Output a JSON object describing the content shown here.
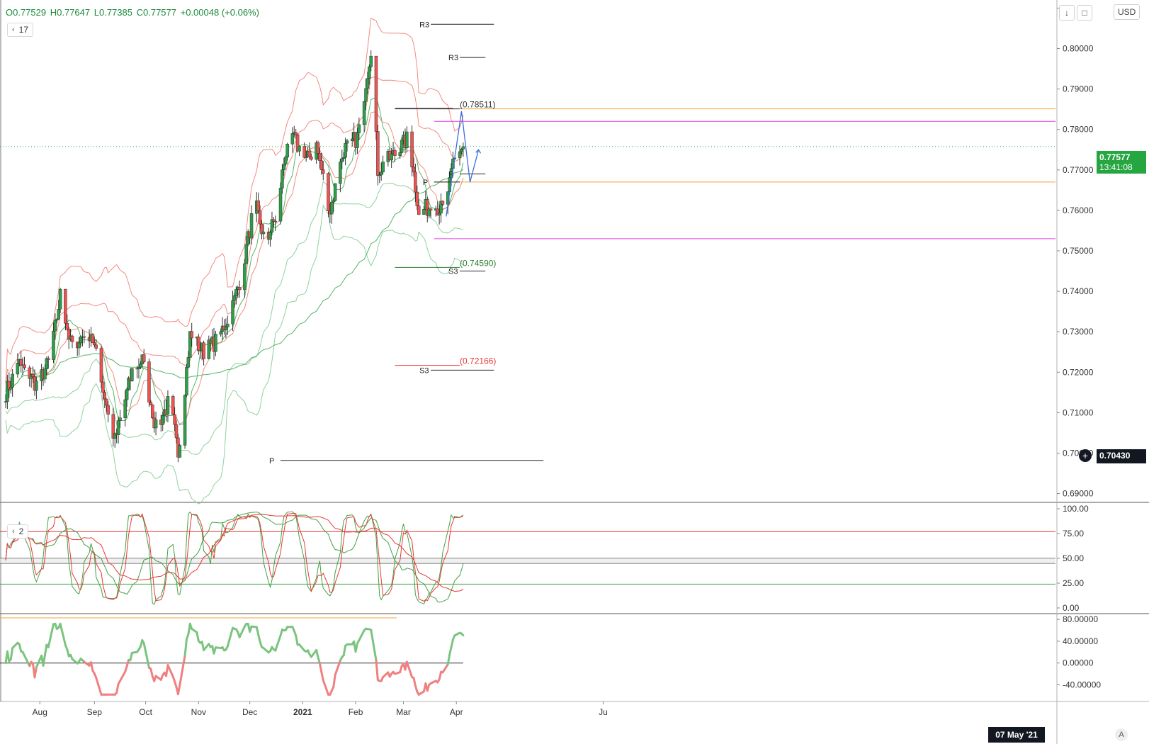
{
  "header": {
    "open": "O0.77529",
    "high": "H0.77647",
    "low": "L0.77385",
    "close": "C0.77577",
    "change": "+0.00048 (+0.06%)"
  },
  "legends": {
    "main_length": "17",
    "stoch_length": "2"
  },
  "toolbar": {
    "down_icon": "arrow-down-icon",
    "fullscreen_icon": "fullscreen-icon",
    "currency": "USD"
  },
  "price_tag": {
    "value": "0.77577",
    "countdown": "13:41:08",
    "color": "#26a641"
  },
  "crosshair_tag": {
    "value": "0.70430"
  },
  "time_tag": {
    "label": "07 May '21"
  },
  "auto_label": "A",
  "chart_data": [
    {
      "type": "candlestick",
      "symbol_currency": "USD",
      "y_axis": {
        "range": [
          0.688,
          0.812
        ],
        "ticks": [
          "0.69000",
          "0.70000",
          "0.71000",
          "0.72000",
          "0.73000",
          "0.74000",
          "0.75000",
          "0.76000",
          "0.77000",
          "0.78000",
          "0.79000",
          "0.80000",
          "0.8"
        ]
      },
      "x_axis": {
        "labels": [
          "Aug",
          "Sep",
          "Oct",
          "Nov",
          "Dec",
          "2021",
          "Feb",
          "Mar",
          "Apr",
          "Ju"
        ]
      },
      "anchors": [
        {
          "d": 0,
          "c": 0.715
        },
        {
          "d": 8,
          "c": 0.722
        },
        {
          "d": 18,
          "c": 0.717
        },
        {
          "d": 26,
          "c": 0.723
        },
        {
          "d": 32,
          "c": 0.739
        },
        {
          "d": 38,
          "c": 0.727
        },
        {
          "d": 50,
          "c": 0.73
        },
        {
          "d": 58,
          "c": 0.714
        },
        {
          "d": 64,
          "c": 0.703
        },
        {
          "d": 74,
          "c": 0.72
        },
        {
          "d": 80,
          "c": 0.723
        },
        {
          "d": 88,
          "c": 0.706
        },
        {
          "d": 96,
          "c": 0.713
        },
        {
          "d": 101,
          "c": 0.7
        },
        {
          "d": 108,
          "c": 0.729
        },
        {
          "d": 116,
          "c": 0.725
        },
        {
          "d": 124,
          "c": 0.728
        },
        {
          "d": 132,
          "c": 0.735
        },
        {
          "d": 138,
          "c": 0.744
        },
        {
          "d": 146,
          "c": 0.762
        },
        {
          "d": 152,
          "c": 0.752
        },
        {
          "d": 158,
          "c": 0.758
        },
        {
          "d": 166,
          "c": 0.78
        },
        {
          "d": 176,
          "c": 0.772
        },
        {
          "d": 182,
          "c": 0.776
        },
        {
          "d": 190,
          "c": 0.76
        },
        {
          "d": 198,
          "c": 0.775
        },
        {
          "d": 206,
          "c": 0.778
        },
        {
          "d": 214,
          "c": 0.8
        },
        {
          "d": 218,
          "c": 0.77
        },
        {
          "d": 228,
          "c": 0.774
        },
        {
          "d": 236,
          "c": 0.778
        },
        {
          "d": 242,
          "c": 0.76
        },
        {
          "d": 250,
          "c": 0.761
        },
        {
          "d": 258,
          "c": 0.76
        },
        {
          "d": 262,
          "c": 0.772
        },
        {
          "d": 268,
          "c": 0.7758
        }
      ],
      "current_price": 0.77577,
      "pivot_levels": [
        {
          "label": "R3",
          "value": 0.806,
          "from_day": 249,
          "to_day": 286
        },
        {
          "label": "R3",
          "value": 0.7978,
          "from_day": 266,
          "to_day": 281
        },
        {
          "label": "",
          "value": 0.7852,
          "from_day": 228,
          "to_day": 262
        },
        {
          "label": "(0.78511)",
          "value": 0.7851
        },
        {
          "label": "P",
          "value": 0.769,
          "from_day": 266,
          "to_day": 281
        },
        {
          "label": "P",
          "value": 0.767,
          "from_day": 251,
          "to_day": 266
        },
        {
          "label": "(0.74590)",
          "value": 0.7459
        },
        {
          "label": "S3",
          "value": 0.745,
          "from_day": 266,
          "to_day": 281
        },
        {
          "label": "(0.72166)",
          "value": 0.7217
        },
        {
          "label": "S3",
          "value": 0.7205,
          "from_day": 249,
          "to_day": 286
        },
        {
          "label": "P",
          "value": 0.6982,
          "from_day": 161,
          "to_day": 315
        }
      ],
      "horizontal_lines": [
        {
          "value": 0.7851,
          "color": "#f7a23b"
        },
        {
          "value": 0.782,
          "color": "#e040e0"
        },
        {
          "value": 0.767,
          "color": "#f7a23b"
        },
        {
          "value": 0.753,
          "color": "#e040e0"
        }
      ]
    },
    {
      "type": "line",
      "name": "stochastic",
      "y_axis": {
        "range": [
          -5,
          105
        ],
        "ticks": [
          "0.00",
          "25.00",
          "50.00",
          "75.00",
          "100.00"
        ]
      },
      "levels": [
        77,
        50,
        45,
        24
      ]
    },
    {
      "type": "line",
      "name": "oscillator",
      "y_axis": {
        "range": [
          -68,
          88
        ],
        "ticks": [
          "-40.00000",
          "0.00000",
          "40.00000",
          "80.00000"
        ]
      },
      "zero_line": 0
    }
  ]
}
